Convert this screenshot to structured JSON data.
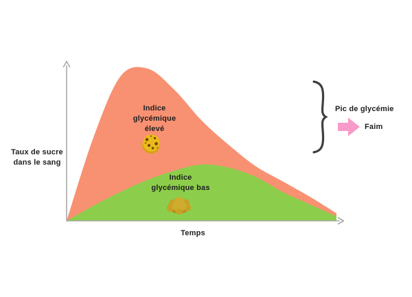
{
  "labels": {
    "y_axis": "Taux de sucre\ndans le sang",
    "x_axis": "Temps",
    "high_gi": "Indice\nglycémique\nélevé",
    "low_gi": "Indice\nglycémique bas",
    "peak": "Pic de glycémie",
    "hunger": "Faim"
  },
  "icons": {
    "high_gi": "cookie-icon",
    "low_gi": "walnut-icon",
    "callout": "right-arrow-icon",
    "grouping": "curly-brace"
  },
  "colors": {
    "background": "#FFFFFF",
    "text": "#1E1E1E",
    "axis": "#A8A8A8",
    "high_area": "#F89172",
    "low_area": "#8CCE4B",
    "brace": "#3F3F3F",
    "callout_arrow": "#F89BC8",
    "cookie_base": "#D7A112",
    "cookie_top": "#EBB91B",
    "cookie_chips": "#6B4408",
    "walnut_base": "#B28E1E",
    "walnut_bumps": "#C7A124",
    "walnut_bumps_alt": "#CFAB2E"
  },
  "chart_data": {
    "type": "area",
    "title": "",
    "xlabel": "Temps",
    "ylabel": "Taux de sucre dans le sang",
    "x": [
      0,
      1,
      2,
      3,
      4,
      5,
      6,
      7,
      8,
      9,
      10
    ],
    "x_units": "qualitative time (no tick labels shown)",
    "ylim": [
      0,
      100
    ],
    "xlim": [
      0,
      10
    ],
    "grid": false,
    "legend_position": "labels inside plotted areas",
    "series": [
      {
        "name": "Indice glycémique élevé",
        "color": "#F89172",
        "values": [
          0,
          55,
          95,
          100,
          86,
          66,
          50,
          36,
          26,
          16,
          5
        ]
      },
      {
        "name": "Indice glycémique bas",
        "color": "#8CCE4B",
        "values": [
          0,
          10,
          19,
          27,
          33,
          37,
          35,
          29,
          19,
          11,
          3
        ]
      }
    ],
    "annotations": [
      {
        "text": "Pic de glycémie",
        "note": "curly brace spans the high-GI peak region"
      },
      {
        "text": "Faim",
        "note": "pink block arrow points from peak label to consequence"
      }
    ]
  }
}
